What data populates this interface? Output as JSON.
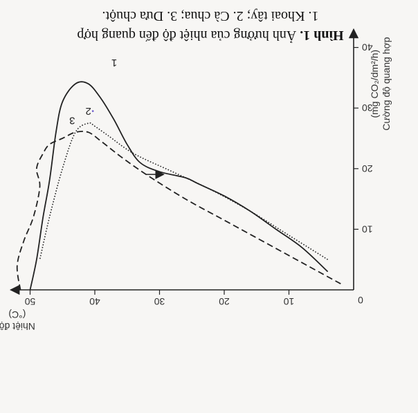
{
  "caption": {
    "prefix": "Hình 1.",
    "line1": "Ảnh hưởng của nhiệt độ đến quang hợp",
    "line2": "1. Khoai tây; 2. Cà chua; 3. Dưa chuột."
  },
  "chart_data": {
    "type": "line",
    "xlabel": "Nhiệt độ (°C)",
    "ylabel": "Cường độ quang hợp (mg CO₂/dm²/h)",
    "xlim": [
      0,
      53
    ],
    "ylim": [
      0,
      43
    ],
    "x_ticks": [
      "10",
      "20",
      "30",
      "40",
      "50"
    ],
    "y_ticks": [
      "10",
      "20",
      "30",
      "40"
    ],
    "origin_label": "0",
    "grid": false,
    "series": [
      {
        "name": "1",
        "style": "solid",
        "points": [
          [
            4,
            3
          ],
          [
            8,
            7
          ],
          [
            12,
            10
          ],
          [
            16,
            13
          ],
          [
            20,
            15.5
          ],
          [
            24,
            17.5
          ],
          [
            26,
            18.5
          ],
          [
            30,
            19.5
          ],
          [
            33,
            21
          ],
          [
            35,
            24
          ],
          [
            37,
            28
          ],
          [
            39,
            31.5
          ],
          [
            41,
            34
          ],
          [
            43,
            34
          ],
          [
            45,
            31
          ],
          [
            46,
            26
          ],
          [
            47,
            18
          ],
          [
            48,
            12
          ],
          [
            49,
            5
          ],
          [
            50,
            0
          ]
        ]
      },
      {
        "name": "2",
        "style": "dotted",
        "points": [
          [
            4,
            5
          ],
          [
            10,
            9
          ],
          [
            16,
            13
          ],
          [
            22,
            16.5
          ],
          [
            28,
            19.5
          ],
          [
            34,
            22.5
          ],
          [
            38,
            25.5
          ],
          [
            40,
            27
          ],
          [
            41,
            27.5
          ],
          [
            43,
            26
          ],
          [
            45,
            20
          ],
          [
            47,
            12
          ],
          [
            48.5,
            5
          ]
        ]
      },
      {
        "name": "3",
        "style": "dashed",
        "points": [
          [
            2,
            1
          ],
          [
            8,
            4.5
          ],
          [
            14,
            8
          ],
          [
            20,
            11.5
          ],
          [
            26,
            15
          ],
          [
            32,
            19
          ],
          [
            36,
            22
          ],
          [
            39,
            24.5
          ],
          [
            41,
            26
          ],
          [
            43,
            26
          ],
          [
            45,
            25
          ],
          [
            47,
            24
          ],
          [
            48,
            22.5
          ],
          [
            49,
            20
          ],
          [
            48.5,
            17
          ],
          [
            49.5,
            12
          ],
          [
            51,
            8
          ],
          [
            52,
            4
          ],
          [
            51.5,
            0
          ]
        ]
      }
    ],
    "annotations": [
      {
        "type": "arrow",
        "at": [
          30,
          19.5
        ],
        "direction": "left"
      }
    ]
  }
}
